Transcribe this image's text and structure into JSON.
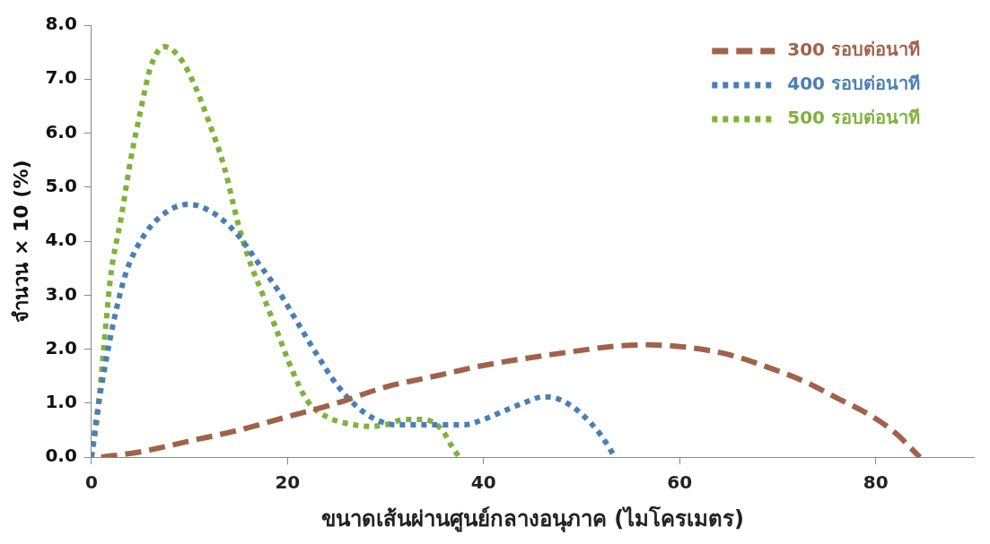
{
  "chart_data": {
    "type": "line",
    "xlabel": "ขนาดเส้นผ่านศูนย์กลางอนุภาค (ไมโครเมตร)",
    "ylabel": "จำนวน × 10 (%)",
    "xlim": [
      0,
      90
    ],
    "xticks": [
      0,
      20,
      40,
      60,
      80
    ],
    "ylim": [
      0,
      8
    ],
    "yticks": [
      {
        "value": 0,
        "label": "0.0"
      },
      {
        "value": 1,
        "label": "1.0"
      },
      {
        "value": 2,
        "label": "2.0"
      },
      {
        "value": 3,
        "label": "3.0"
      },
      {
        "value": 4,
        "label": "4.0"
      },
      {
        "value": 5,
        "label": "5.0"
      },
      {
        "value": 6,
        "label": "6.0"
      },
      {
        "value": 7,
        "label": "7.0"
      },
      {
        "value": 8,
        "label": "8.0"
      }
    ],
    "grid": false,
    "legend": "top right",
    "marker": "none",
    "series": [
      {
        "name": "300 รอบต่อนาที",
        "color": "#a0624a",
        "line_style": "dashed",
        "x": [
          1,
          5,
          10,
          15,
          20,
          25,
          30,
          35,
          40,
          45,
          50,
          53,
          57,
          61,
          65,
          70,
          73,
          76,
          79.6,
          82,
          84.5
        ],
        "values": [
          0,
          0.1,
          0.3,
          0.5,
          0.75,
          1.0,
          1.3,
          1.5,
          1.7,
          1.85,
          1.98,
          2.05,
          2.08,
          2.03,
          1.9,
          1.6,
          1.38,
          1.1,
          0.76,
          0.45,
          0
        ]
      },
      {
        "name": "400 รอบต่อนาที",
        "color": "#4a7fb5",
        "line_style": "dotted",
        "x": [
          0,
          0.5,
          1.5,
          2.5,
          3.5,
          5,
          7,
          9.8,
          11,
          13,
          15,
          17,
          19,
          21,
          23,
          25,
          27,
          29,
          31,
          33,
          35,
          38,
          40,
          42,
          44,
          46.2,
          48,
          50,
          52,
          53.4
        ],
        "values": [
          0,
          0.7,
          1.8,
          2.7,
          3.4,
          4.0,
          4.45,
          4.68,
          4.65,
          4.45,
          4.1,
          3.6,
          3.1,
          2.5,
          1.9,
          1.35,
          0.95,
          0.7,
          0.6,
          0.6,
          0.6,
          0.6,
          0.7,
          0.85,
          1.0,
          1.12,
          1.05,
          0.8,
          0.4,
          0
        ]
      },
      {
        "name": "500 รอบต่อนาที",
        "color": "#7fb23a",
        "line_style": "dotted",
        "x": [
          0,
          0.5,
          1,
          1.5,
          2,
          3,
          4,
          5,
          6,
          7.4,
          9,
          10.5,
          12,
          13.5,
          15,
          16,
          17.5,
          19,
          20.5,
          22,
          24,
          26.8,
          28.4,
          30,
          32,
          33.8,
          35.8,
          36.6,
          37.5
        ],
        "values": [
          0,
          0.6,
          1.5,
          2.5,
          3.4,
          4.4,
          5.5,
          6.4,
          7.2,
          7.6,
          7.4,
          6.9,
          6.2,
          5.4,
          4.3,
          3.7,
          3.0,
          2.3,
          1.6,
          1.05,
          0.75,
          0.6,
          0.57,
          0.6,
          0.7,
          0.7,
          0.5,
          0.25,
          0
        ]
      }
    ]
  }
}
